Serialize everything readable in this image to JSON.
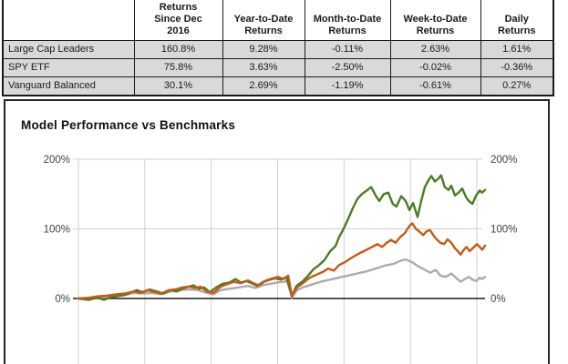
{
  "table": {
    "headers": [
      "",
      "Returns\nSince Dec\n2016",
      "Year-to-Date\nReturns",
      "Month-to-Date\nReturns",
      "Week-to-Date\nReturns",
      "Daily\nReturns"
    ],
    "rows": [
      {
        "label": "Large Cap Leaders",
        "values": [
          "160.8%",
          "9.28%",
          "-0.11%",
          "2.63%",
          "1.61%"
        ]
      },
      {
        "label": "SPY ETF",
        "values": [
          "75.8%",
          "3.63%",
          "-2.50%",
          "-0.02%",
          "-0.36%"
        ]
      },
      {
        "label": "Vanguard Balanced",
        "values": [
          "30.1%",
          "2.69%",
          "-1.19%",
          "-0.61%",
          "0.27%"
        ]
      }
    ],
    "row_bg": "#d9d9d9"
  },
  "chart": {
    "title": "Model Performance vs Benchmarks",
    "y_ticks_left": [
      "200%",
      "100%",
      "0%"
    ],
    "y_ticks_right": [
      "200%",
      "100%",
      "0%"
    ]
  },
  "chart_data": {
    "type": "line",
    "title": "Model Performance vs Benchmarks",
    "y_axis": {
      "tick_values": [
        0,
        100,
        200
      ],
      "unit": "%",
      "ylim_visible": [
        -30,
        200
      ]
    },
    "x_axis": {
      "tick_labels_visible": false,
      "vertical_gridline_count": 7,
      "x_is_percent_of_timeline": true
    },
    "grid": true,
    "legend": "none",
    "colors": {
      "large_cap_leaders": "#4a7c23",
      "spy_etf": "#c55a11",
      "vanguard_balanced": "#ababab",
      "gridline": "#d2cfcf",
      "zero_axis": "#1a1a1a"
    },
    "series": [
      {
        "name": "Vanguard Balanced",
        "color": "#ababab",
        "final_return_pct": 30.1,
        "points": [
          [
            0,
            0
          ],
          [
            2.5,
            0
          ],
          [
            4.7,
            2
          ],
          [
            7,
            2
          ],
          [
            9.2,
            4
          ],
          [
            11.4,
            5
          ],
          [
            13.7,
            8
          ],
          [
            15.9,
            7
          ],
          [
            18.2,
            8
          ],
          [
            20.4,
            6
          ],
          [
            22.6,
            10
          ],
          [
            24.9,
            12
          ],
          [
            27.1,
            13
          ],
          [
            29.4,
            12
          ],
          [
            31.6,
            8
          ],
          [
            33.2,
            6
          ],
          [
            35,
            12
          ],
          [
            37.2,
            14
          ],
          [
            39.5,
            16
          ],
          [
            41.7,
            18
          ],
          [
            43.5,
            15
          ],
          [
            45.3,
            19
          ],
          [
            47.1,
            21
          ],
          [
            48.9,
            23
          ],
          [
            50.7,
            24
          ],
          [
            51.8,
            26
          ],
          [
            52.5,
            1
          ],
          [
            53.8,
            12
          ],
          [
            55.2,
            16
          ],
          [
            57.4,
            20
          ],
          [
            59.6,
            24
          ],
          [
            61.9,
            27
          ],
          [
            64.1,
            30
          ],
          [
            66.4,
            33
          ],
          [
            68.6,
            36
          ],
          [
            70.9,
            39
          ],
          [
            73.1,
            43
          ],
          [
            75.3,
            47
          ],
          [
            77.6,
            50
          ],
          [
            79.1,
            54
          ],
          [
            80.5,
            56
          ],
          [
            82.1,
            52
          ],
          [
            83.6,
            46
          ],
          [
            85,
            42
          ],
          [
            86.5,
            37
          ],
          [
            87.9,
            41
          ],
          [
            89,
            33
          ],
          [
            90.4,
            31
          ],
          [
            91.7,
            36
          ],
          [
            92.8,
            30
          ],
          [
            94,
            24
          ],
          [
            95.1,
            28
          ],
          [
            96,
            31
          ],
          [
            96.9,
            27
          ],
          [
            97.8,
            25
          ],
          [
            98.7,
            30
          ],
          [
            99.3,
            28
          ],
          [
            100,
            31
          ]
        ]
      },
      {
        "name": "Large Cap Leaders",
        "color": "#4a7c23",
        "final_return_pct": 160.8,
        "points": [
          [
            0,
            0
          ],
          [
            2.5,
            -2
          ],
          [
            4.7,
            1
          ],
          [
            6.3,
            -2
          ],
          [
            8.1,
            2
          ],
          [
            11.4,
            5
          ],
          [
            14.3,
            12
          ],
          [
            15.9,
            9
          ],
          [
            17.5,
            13
          ],
          [
            19.3,
            10
          ],
          [
            20.9,
            7
          ],
          [
            22.6,
            12
          ],
          [
            24.2,
            10
          ],
          [
            26,
            15
          ],
          [
            28.3,
            19
          ],
          [
            29.6,
            14
          ],
          [
            30.9,
            16
          ],
          [
            32.3,
            9
          ],
          [
            33.9,
            16
          ],
          [
            35.4,
            21
          ],
          [
            37.2,
            23
          ],
          [
            38.6,
            28
          ],
          [
            39.9,
            23
          ],
          [
            41.3,
            25
          ],
          [
            42.6,
            22
          ],
          [
            43.9,
            18
          ],
          [
            45.5,
            24
          ],
          [
            47.1,
            27
          ],
          [
            48.4,
            29
          ],
          [
            49.8,
            27
          ],
          [
            51.1,
            31
          ],
          [
            52.5,
            3
          ],
          [
            53.6,
            18
          ],
          [
            55.2,
            25
          ],
          [
            56.5,
            33
          ],
          [
            57.8,
            42
          ],
          [
            59.2,
            48
          ],
          [
            60.5,
            55
          ],
          [
            61.9,
            68
          ],
          [
            63.2,
            75
          ],
          [
            64.1,
            88
          ],
          [
            65.2,
            100
          ],
          [
            66.4,
            115
          ],
          [
            67.5,
            130
          ],
          [
            68.6,
            143
          ],
          [
            69.7,
            150
          ],
          [
            70.9,
            155
          ],
          [
            72,
            160
          ],
          [
            73.1,
            148
          ],
          [
            74,
            140
          ],
          [
            75.1,
            150
          ],
          [
            76.2,
            152
          ],
          [
            77.3,
            136
          ],
          [
            78.2,
            132
          ],
          [
            79.4,
            147
          ],
          [
            80.5,
            140
          ],
          [
            81.4,
            127
          ],
          [
            82.3,
            137
          ],
          [
            83.4,
            117
          ],
          [
            84.3,
            140
          ],
          [
            85.2,
            160
          ],
          [
            86.1,
            170
          ],
          [
            86.8,
            176
          ],
          [
            87.7,
            168
          ],
          [
            88.5,
            172
          ],
          [
            89.2,
            177
          ],
          [
            90.1,
            160
          ],
          [
            91,
            156
          ],
          [
            91.7,
            162
          ],
          [
            92.6,
            148
          ],
          [
            93.5,
            152
          ],
          [
            94.4,
            158
          ],
          [
            95.3,
            146
          ],
          [
            96,
            140
          ],
          [
            96.9,
            136
          ],
          [
            97.8,
            148
          ],
          [
            98.7,
            155
          ],
          [
            99.3,
            152
          ],
          [
            100,
            156
          ]
        ]
      },
      {
        "name": "SPY ETF",
        "color": "#c55a11",
        "final_return_pct": 75.8,
        "points": [
          [
            0,
            0
          ],
          [
            2.5,
            1
          ],
          [
            4.7,
            3
          ],
          [
            7,
            4
          ],
          [
            9.2,
            6
          ],
          [
            11.4,
            7
          ],
          [
            13.7,
            10
          ],
          [
            15.2,
            8
          ],
          [
            17,
            12
          ],
          [
            18.8,
            9
          ],
          [
            20.4,
            7
          ],
          [
            22.2,
            12
          ],
          [
            23.8,
            13
          ],
          [
            25.6,
            16
          ],
          [
            27.1,
            17
          ],
          [
            28.7,
            15
          ],
          [
            30,
            17
          ],
          [
            31.6,
            10
          ],
          [
            33.2,
            8
          ],
          [
            35,
            17
          ],
          [
            36.8,
            21
          ],
          [
            38.3,
            24
          ],
          [
            39.9,
            22
          ],
          [
            41.7,
            26
          ],
          [
            43,
            22
          ],
          [
            44.4,
            19
          ],
          [
            46.2,
            26
          ],
          [
            47.8,
            29
          ],
          [
            49.1,
            31
          ],
          [
            50.4,
            28
          ],
          [
            51.6,
            33
          ],
          [
            52.5,
            4
          ],
          [
            53.8,
            16
          ],
          [
            55.2,
            22
          ],
          [
            56.9,
            30
          ],
          [
            58.5,
            34
          ],
          [
            60.1,
            38
          ],
          [
            61.4,
            43
          ],
          [
            62.8,
            40
          ],
          [
            64.1,
            48
          ],
          [
            65.5,
            52
          ],
          [
            66.8,
            57
          ],
          [
            68.2,
            62
          ],
          [
            69.5,
            66
          ],
          [
            70.9,
            70
          ],
          [
            72.2,
            74
          ],
          [
            73.5,
            78
          ],
          [
            74.7,
            74
          ],
          [
            75.8,
            80
          ],
          [
            76.9,
            84
          ],
          [
            78,
            80
          ],
          [
            79.1,
            88
          ],
          [
            80.3,
            94
          ],
          [
            81.4,
            104
          ],
          [
            82.1,
            108
          ],
          [
            83,
            100
          ],
          [
            83.9,
            96
          ],
          [
            84.8,
            91
          ],
          [
            85.7,
            97
          ],
          [
            86.5,
            98
          ],
          [
            87.4,
            90
          ],
          [
            88.1,
            85
          ],
          [
            89,
            80
          ],
          [
            89.9,
            78
          ],
          [
            90.8,
            85
          ],
          [
            91.7,
            80
          ],
          [
            92.6,
            72
          ],
          [
            93.3,
            68
          ],
          [
            94,
            63
          ],
          [
            94.8,
            70
          ],
          [
            95.5,
            74
          ],
          [
            96.2,
            68
          ],
          [
            97.1,
            73
          ],
          [
            98,
            78
          ],
          [
            98.7,
            74
          ],
          [
            99.3,
            70
          ],
          [
            100,
            76
          ]
        ]
      }
    ]
  }
}
